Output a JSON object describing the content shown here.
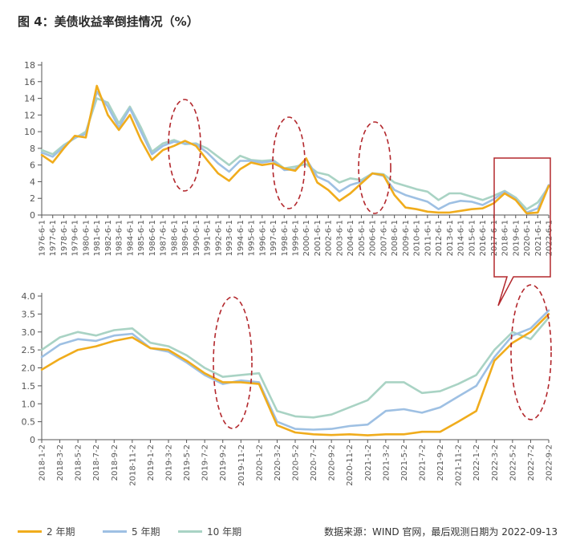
{
  "title": "图 4：美债收益率倒挂情况（%）",
  "colors": {
    "y2": "#f0ac1c",
    "y5": "#9ec0e3",
    "y10": "#a9d3c4",
    "annot": "#b3282d",
    "axis": "#555555"
  },
  "legend": [
    {
      "label": "2 年期",
      "color": "#f0ac1c"
    },
    {
      "label": "5 年期",
      "color": "#9ec0e3"
    },
    {
      "label": "10 年期",
      "color": "#a9d3c4"
    }
  ],
  "source": "数据来源：WIND 官网，最后观测日期为 2022-09-13",
  "chart_data": [
    {
      "type": "line",
      "title": "1976-2022",
      "ylim": [
        0,
        18
      ],
      "yticks": [
        "0",
        "2",
        "4",
        "6",
        "8",
        "10",
        "12",
        "14",
        "16",
        "18"
      ],
      "categories": [
        "1976-6-1",
        "1977-6-1",
        "1978-6-1",
        "1979-6-1",
        "1980-6-1",
        "1981-6-1",
        "1982-6-1",
        "1983-6-1",
        "1984-6-1",
        "1985-6-1",
        "1986-6-1",
        "1987-6-1",
        "1988-6-1",
        "1989-6-1",
        "1990-6-1",
        "1991-6-1",
        "1992-6-1",
        "1993-6-1",
        "1994-6-1",
        "1995-6-1",
        "1996-6-1",
        "1997-6-1",
        "1998-6-1",
        "1999-6-1",
        "2000-6-1",
        "2001-6-1",
        "2002-6-1",
        "2003-6-1",
        "2004-6-1",
        "2005-6-1",
        "2006-6-1",
        "2007-6-1",
        "2008-6-1",
        "2009-6-1",
        "2010-6-1",
        "2011-6-1",
        "2012-6-1",
        "2013-6-1",
        "2014-6-1",
        "2015-6-1",
        "2016-6-1",
        "2017-6-1",
        "2018-6-1",
        "2019-6-1",
        "2020-6-1",
        "2021-6-1",
        "2022-6-1"
      ],
      "series": [
        {
          "name": "2 年期",
          "values": [
            7.2,
            6.3,
            8.0,
            9.5,
            9.3,
            15.5,
            12.0,
            10.2,
            12.0,
            9.0,
            6.6,
            7.8,
            8.3,
            8.9,
            8.3,
            6.6,
            5.0,
            4.1,
            5.5,
            6.3,
            6.0,
            6.2,
            5.6,
            5.3,
            6.8,
            3.9,
            3.0,
            1.7,
            2.6,
            3.8,
            5.0,
            4.8,
            2.4,
            0.9,
            0.7,
            0.4,
            0.3,
            0.3,
            0.5,
            0.7,
            0.8,
            1.4,
            2.6,
            1.8,
            0.2,
            0.3,
            3.5
          ]
        },
        {
          "name": "5 年期",
          "values": [
            7.5,
            7.0,
            8.2,
            9.3,
            9.7,
            14.8,
            13.0,
            10.5,
            12.8,
            10.0,
            7.3,
            8.3,
            8.8,
            8.6,
            8.5,
            7.5,
            6.2,
            5.2,
            6.5,
            6.5,
            6.3,
            6.5,
            5.4,
            5.5,
            6.7,
            4.6,
            4.0,
            2.8,
            3.6,
            4.0,
            5.0,
            4.7,
            3.0,
            2.4,
            2.0,
            1.6,
            0.7,
            1.4,
            1.7,
            1.6,
            1.2,
            1.9,
            2.8,
            1.9,
            0.3,
            0.8,
            3.6
          ]
        },
        {
          "name": "10 年期",
          "values": [
            7.8,
            7.3,
            8.4,
            9.2,
            10.0,
            14.0,
            13.5,
            11.0,
            13.0,
            10.5,
            7.6,
            8.6,
            9.0,
            8.5,
            8.6,
            8.0,
            7.0,
            6.0,
            7.1,
            6.6,
            6.5,
            6.6,
            5.6,
            5.8,
            6.1,
            5.1,
            4.8,
            3.9,
            4.4,
            4.2,
            5.0,
            4.9,
            3.9,
            3.5,
            3.1,
            2.8,
            1.8,
            2.6,
            2.6,
            2.2,
            1.8,
            2.3,
            2.9,
            2.1,
            0.7,
            1.5,
            3.4
          ]
        }
      ]
    },
    {
      "type": "line",
      "title": "2018-2022",
      "ylim": [
        0,
        4
      ],
      "yticks": [
        "0",
        "0.5",
        "1.0",
        "1.5",
        "2.0",
        "2.5",
        "3.0",
        "3.5",
        "4.0"
      ],
      "categories": [
        "2018-1-2",
        "2018-3-2",
        "2018-5-2",
        "2018-7-2",
        "2018-9-2",
        "2018-11-2",
        "2019-1-2",
        "2019-3-2",
        "2019-5-2",
        "2019-7-2",
        "2019-9-2",
        "2019-11-2",
        "2020-1-2",
        "2020-3-2",
        "2020-5-2",
        "2020-7-2",
        "2020-9-2",
        "2020-11-2",
        "2021-1-2",
        "2021-3-2",
        "2021-5-2",
        "2021-7-2",
        "2021-9-2",
        "2021-11-2",
        "2022-1-2",
        "2022-3-2",
        "2022-5-2",
        "2022-7-2",
        "2022-9-2"
      ],
      "series": [
        {
          "name": "2 年期",
          "values": [
            1.95,
            2.25,
            2.5,
            2.6,
            2.75,
            2.85,
            2.55,
            2.5,
            2.2,
            1.85,
            1.6,
            1.6,
            1.55,
            0.4,
            0.2,
            0.15,
            0.13,
            0.15,
            0.12,
            0.15,
            0.15,
            0.22,
            0.22,
            0.5,
            0.8,
            2.2,
            2.7,
            3.0,
            3.5
          ]
        },
        {
          "name": "5 年期",
          "values": [
            2.3,
            2.65,
            2.8,
            2.75,
            2.9,
            2.95,
            2.55,
            2.45,
            2.15,
            1.8,
            1.55,
            1.65,
            1.6,
            0.5,
            0.3,
            0.28,
            0.3,
            0.38,
            0.42,
            0.8,
            0.85,
            0.75,
            0.9,
            1.2,
            1.5,
            2.3,
            2.9,
            3.1,
            3.6
          ]
        },
        {
          "name": "10 年期",
          "values": [
            2.5,
            2.85,
            3.0,
            2.9,
            3.05,
            3.1,
            2.7,
            2.6,
            2.35,
            2.0,
            1.75,
            1.8,
            1.85,
            0.8,
            0.65,
            0.62,
            0.7,
            0.9,
            1.1,
            1.6,
            1.6,
            1.3,
            1.35,
            1.55,
            1.8,
            2.5,
            3.0,
            2.8,
            3.4
          ]
        }
      ]
    }
  ]
}
